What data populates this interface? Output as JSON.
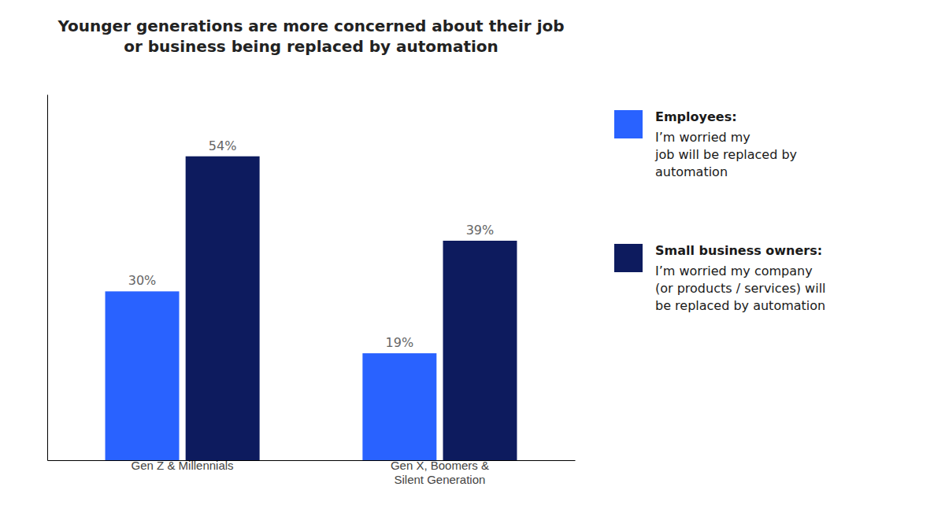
{
  "chart_data": {
    "type": "bar",
    "title": "Younger generations are more concerned about their job\nor business being replaced by automation",
    "categories": [
      "Gen Z & Millennials",
      "Gen X, Boomers &\nSilent Generation"
    ],
    "series": [
      {
        "name": "Employees:",
        "color": "#2962FF",
        "values": [
          30,
          19
        ],
        "value_labels": [
          "30%",
          "19%"
        ]
      },
      {
        "name": "Small business owners:",
        "color": "#0D1B5E",
        "values": [
          54,
          39
        ],
        "value_labels": [
          "54%",
          "39%"
        ]
      }
    ],
    "annotations": [
      "I’m worried my\njob will be replaced by\nautomation",
      "I’m worried my company\n(or products / services) will\nbe replaced by automation"
    ],
    "ylim": [
      0,
      65
    ],
    "grid": false,
    "data_labels": true,
    "tick_labels": "x"
  }
}
